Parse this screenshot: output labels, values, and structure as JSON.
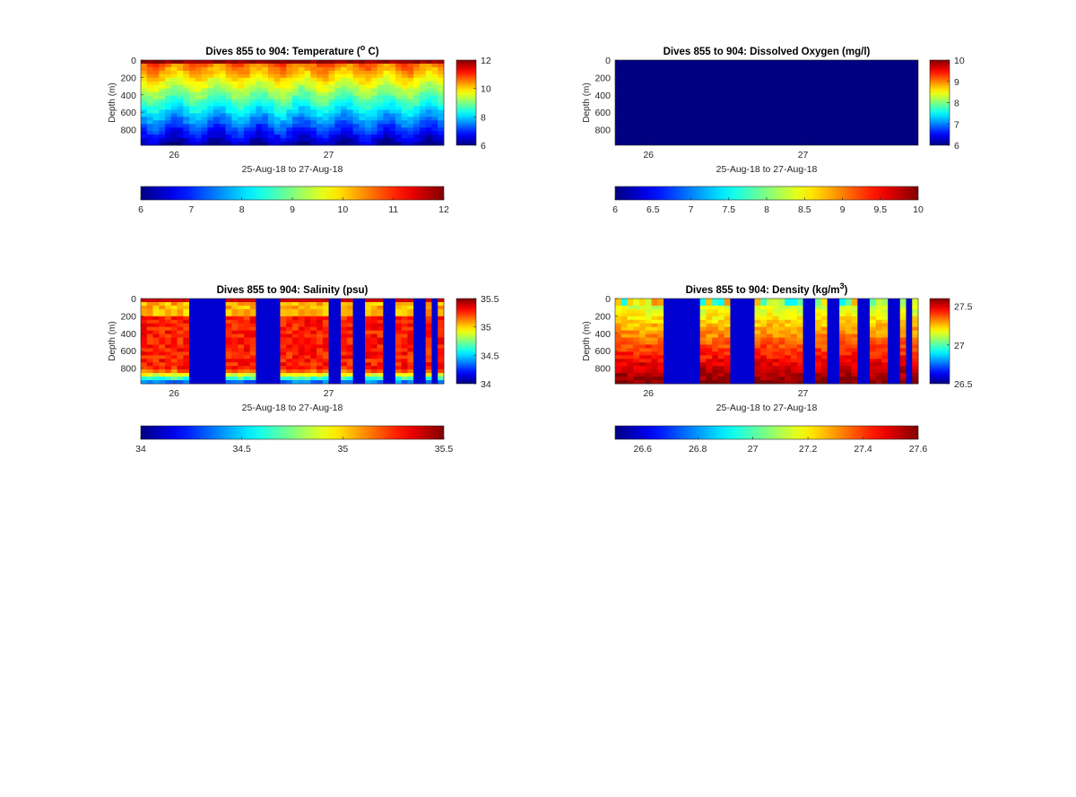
{
  "chart_data": [
    {
      "type": "heatmap",
      "title_prefix": "Dives 855 to 904: Temperature (",
      "title_sup": "o",
      "title_suffix": " C)",
      "xlabel": "25-Aug-18 to 27-Aug-18",
      "ylabel": "Depth (m)",
      "x_ticks": [
        "26",
        "27"
      ],
      "y_ticks": [
        "0",
        "200",
        "400",
        "600",
        "800"
      ],
      "ylim": [
        0,
        980
      ],
      "clim": [
        6,
        12
      ],
      "colorbar_ticks": [
        "6",
        "8",
        "10",
        "12"
      ],
      "h_colorbar_ticks": [
        "6",
        "7",
        "8",
        "9",
        "10",
        "11",
        "12"
      ],
      "colormap": "jet",
      "columns": 50
    },
    {
      "type": "heatmap",
      "title_prefix": "Dives 855 to 904: Dissolved Oxygen (mg/l)",
      "title_sup": "",
      "title_suffix": "",
      "xlabel": "25-Aug-18 to 27-Aug-18",
      "ylabel": "Depth (m)",
      "x_ticks": [
        "26",
        "27"
      ],
      "y_ticks": [
        "0",
        "200",
        "400",
        "600",
        "800"
      ],
      "ylim": [
        0,
        980
      ],
      "clim": [
        6,
        10
      ],
      "colorbar_ticks": [
        "6",
        "7",
        "8",
        "9",
        "10"
      ],
      "h_colorbar_ticks": [
        "6",
        "6.5",
        "7",
        "7.5",
        "8",
        "8.5",
        "9",
        "9.5",
        "10"
      ],
      "colormap": "jet",
      "uniform_value": 6
    },
    {
      "type": "heatmap",
      "title_prefix": "Dives 855 to 904: Salinity (psu)",
      "title_sup": "",
      "title_suffix": "",
      "xlabel": "25-Aug-18 to 27-Aug-18",
      "ylabel": "Depth (m)",
      "x_ticks": [
        "26",
        "27"
      ],
      "y_ticks": [
        "0",
        "200",
        "400",
        "600",
        "800"
      ],
      "ylim": [
        0,
        980
      ],
      "clim": [
        34,
        35.5
      ],
      "colorbar_ticks": [
        "34",
        "34.5",
        "35",
        "35.5"
      ],
      "h_colorbar_ticks": [
        "34",
        "34.5",
        "35",
        "35.5"
      ],
      "colormap": "jet",
      "columns": 50
    },
    {
      "type": "heatmap",
      "title_prefix": "Dives 855 to 904: Density (kg/m",
      "title_sup": "3",
      "title_suffix": ")",
      "xlabel": "25-Aug-18 to 27-Aug-18",
      "ylabel": "Depth (m)",
      "x_ticks": [
        "26",
        "27"
      ],
      "y_ticks": [
        "0",
        "200",
        "400",
        "600",
        "800"
      ],
      "ylim": [
        0,
        980
      ],
      "clim": [
        26.5,
        27.6
      ],
      "colorbar_ticks": [
        "26.5",
        "27",
        "27.5"
      ],
      "h_colorbar_ticks": [
        "26.6",
        "26.8",
        "27",
        "27.2",
        "27.4",
        "27.6"
      ],
      "colormap": "jet",
      "columns": 50
    }
  ]
}
